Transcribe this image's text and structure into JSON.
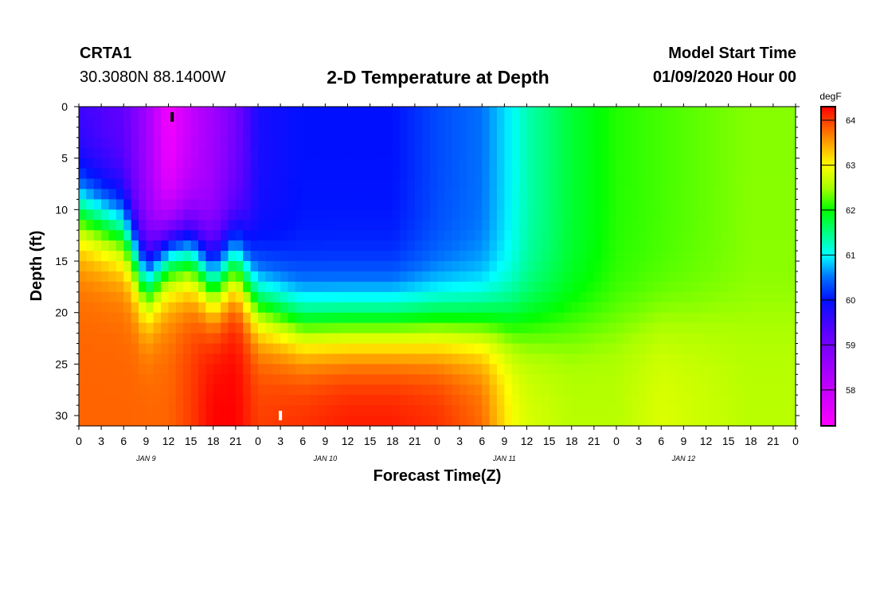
{
  "header": {
    "station": "CRTA1",
    "latlon": "30.3080N 88.1400W",
    "title": "2-D Temperature at Depth",
    "model_start_label": "Model Start Time",
    "model_start_value": "01/09/2020 Hour 00"
  },
  "chart_data": {
    "type": "heatmap",
    "title": "2-D Temperature at Depth",
    "xlabel": "Forecast Time(Z)",
    "ylabel": "Depth (ft)",
    "x_hours_range": [
      0,
      96
    ],
    "x_tick_step_hours": 3,
    "x_tick_labels": [
      "0",
      "3",
      "6",
      "9",
      "12",
      "15",
      "18",
      "21",
      "0",
      "3",
      "6",
      "9",
      "12",
      "15",
      "18",
      "21",
      "0",
      "3",
      "6",
      "9",
      "12",
      "15",
      "18",
      "21",
      "0",
      "3",
      "6",
      "9",
      "12",
      "15",
      "18",
      "21",
      "0"
    ],
    "date_labels": [
      {
        "text": "JAN 9",
        "hour": 9
      },
      {
        "text": "JAN 10",
        "hour": 33
      },
      {
        "text": "JAN 11",
        "hour": 57
      },
      {
        "text": "JAN 12",
        "hour": 81
      }
    ],
    "y_range": [
      0,
      31
    ],
    "y_reversed": true,
    "y_ticks": [
      0,
      5,
      10,
      15,
      20,
      25,
      30
    ],
    "colorbar": {
      "unit": "degF",
      "range": [
        57.2,
        64.3
      ],
      "ticks": [
        58,
        59,
        60,
        61,
        62,
        63,
        64
      ],
      "colors": [
        {
          "v": 57.2,
          "c": "#ff00ff"
        },
        {
          "v": 58.5,
          "c": "#a000ff"
        },
        {
          "v": 59.3,
          "c": "#5a00ff"
        },
        {
          "v": 60.0,
          "c": "#0010ff"
        },
        {
          "v": 60.5,
          "c": "#0070ff"
        },
        {
          "v": 61.0,
          "c": "#00ffff"
        },
        {
          "v": 61.5,
          "c": "#00ff80"
        },
        {
          "v": 62.0,
          "c": "#00ff00"
        },
        {
          "v": 62.5,
          "c": "#a8ff00"
        },
        {
          "v": 63.0,
          "c": "#ffff00"
        },
        {
          "v": 63.5,
          "c": "#ffa000"
        },
        {
          "v": 64.3,
          "c": "#ff0000"
        }
      ]
    },
    "time_hours": [
      0,
      6,
      9,
      12,
      15,
      18,
      21,
      24,
      30,
      36,
      42,
      48,
      54,
      58,
      60,
      66,
      72,
      78,
      84,
      90,
      96
    ],
    "mixed_layer_depth_ft": [
      10,
      12,
      17,
      14,
      14,
      17,
      15,
      19,
      21,
      21,
      21,
      21,
      21,
      21,
      21,
      21,
      21,
      21,
      21,
      21,
      21
    ],
    "surface_temp_degF": [
      59.5,
      59.2,
      58.5,
      57.3,
      58.0,
      58.5,
      59.0,
      59.8,
      60.0,
      60.0,
      60.0,
      60.3,
      60.5,
      61.0,
      61.3,
      61.8,
      62.1,
      62.2,
      62.3,
      62.4,
      62.4
    ],
    "deep_temp_degF": [
      63.8,
      63.8,
      63.8,
      63.8,
      64.0,
      64.3,
      64.3,
      64.0,
      64.1,
      64.2,
      64.2,
      64.1,
      63.8,
      63.0,
      62.8,
      62.6,
      62.6,
      62.8,
      62.7,
      62.6,
      62.6
    ],
    "markers": [
      {
        "hour": 12.5,
        "depth_ft": 1,
        "color": "#000000"
      },
      {
        "hour": 27,
        "depth_ft": 30,
        "color": "#ffffff"
      }
    ]
  }
}
